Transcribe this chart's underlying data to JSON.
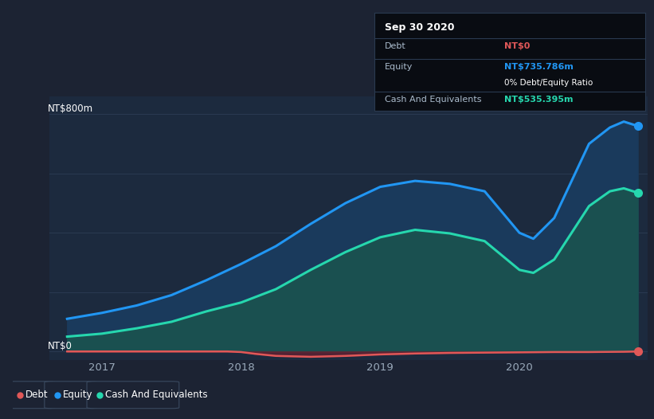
{
  "fig_width": 8.21,
  "fig_height": 5.26,
  "background_color": "#1c2333",
  "chart_bg": "#1c2a3e",
  "grid_color": "#2a3a52",
  "title_label": "NT$800m",
  "zero_label": "NT$0",
  "x_ticks": [
    2017,
    2018,
    2019,
    2020
  ],
  "x_min": 2016.62,
  "x_max": 2020.92,
  "y_min": -30,
  "y_max": 860,
  "equity_color": "#2196f3",
  "cash_color": "#26d7ae",
  "debt_color": "#e05858",
  "equity_fill": "#1a3a5c",
  "cash_fill": "#1a5050",
  "tooltip_bg": "#090c12",
  "tooltip_title": "Sep 30 2020",
  "tooltip_debt_label": "Debt",
  "tooltip_debt_value": "NT$0",
  "tooltip_equity_label": "Equity",
  "tooltip_equity_value": "NT$735.786m",
  "tooltip_ratio": "0% Debt/Equity Ratio",
  "tooltip_cash_label": "Cash And Equivalents",
  "tooltip_cash_value": "NT$535.395m",
  "legend_items": [
    "Debt",
    "Equity",
    "Cash And Equivalents"
  ],
  "legend_colors": [
    "#e05858",
    "#2196f3",
    "#26d7ae"
  ],
  "equity_x": [
    2016.75,
    2017.0,
    2017.25,
    2017.5,
    2017.75,
    2018.0,
    2018.25,
    2018.5,
    2018.75,
    2019.0,
    2019.25,
    2019.5,
    2019.75,
    2020.0,
    2020.1,
    2020.25,
    2020.5,
    2020.65,
    2020.75,
    2020.85
  ],
  "equity_y": [
    110,
    130,
    155,
    190,
    240,
    295,
    355,
    430,
    500,
    555,
    575,
    565,
    540,
    400,
    380,
    450,
    700,
    755,
    775,
    760
  ],
  "cash_x": [
    2016.75,
    2017.0,
    2017.25,
    2017.5,
    2017.75,
    2018.0,
    2018.25,
    2018.5,
    2018.75,
    2019.0,
    2019.25,
    2019.5,
    2019.75,
    2020.0,
    2020.1,
    2020.25,
    2020.5,
    2020.65,
    2020.75,
    2020.85
  ],
  "cash_y": [
    50,
    60,
    78,
    100,
    135,
    165,
    210,
    275,
    335,
    385,
    410,
    398,
    372,
    275,
    265,
    310,
    490,
    540,
    550,
    535
  ],
  "debt_x": [
    2016.75,
    2017.0,
    2017.25,
    2017.5,
    2017.75,
    2017.9,
    2018.0,
    2018.1,
    2018.25,
    2018.5,
    2018.75,
    2019.0,
    2019.25,
    2019.5,
    2019.75,
    2020.0,
    2020.25,
    2020.5,
    2020.75,
    2020.85
  ],
  "debt_y": [
    0,
    0,
    0,
    0,
    0,
    0,
    -2,
    -8,
    -15,
    -18,
    -15,
    -10,
    -7,
    -5,
    -4,
    -3,
    -2,
    -2,
    -1,
    0
  ],
  "gridlines_y": [
    0,
    200,
    400,
    600,
    800
  ]
}
